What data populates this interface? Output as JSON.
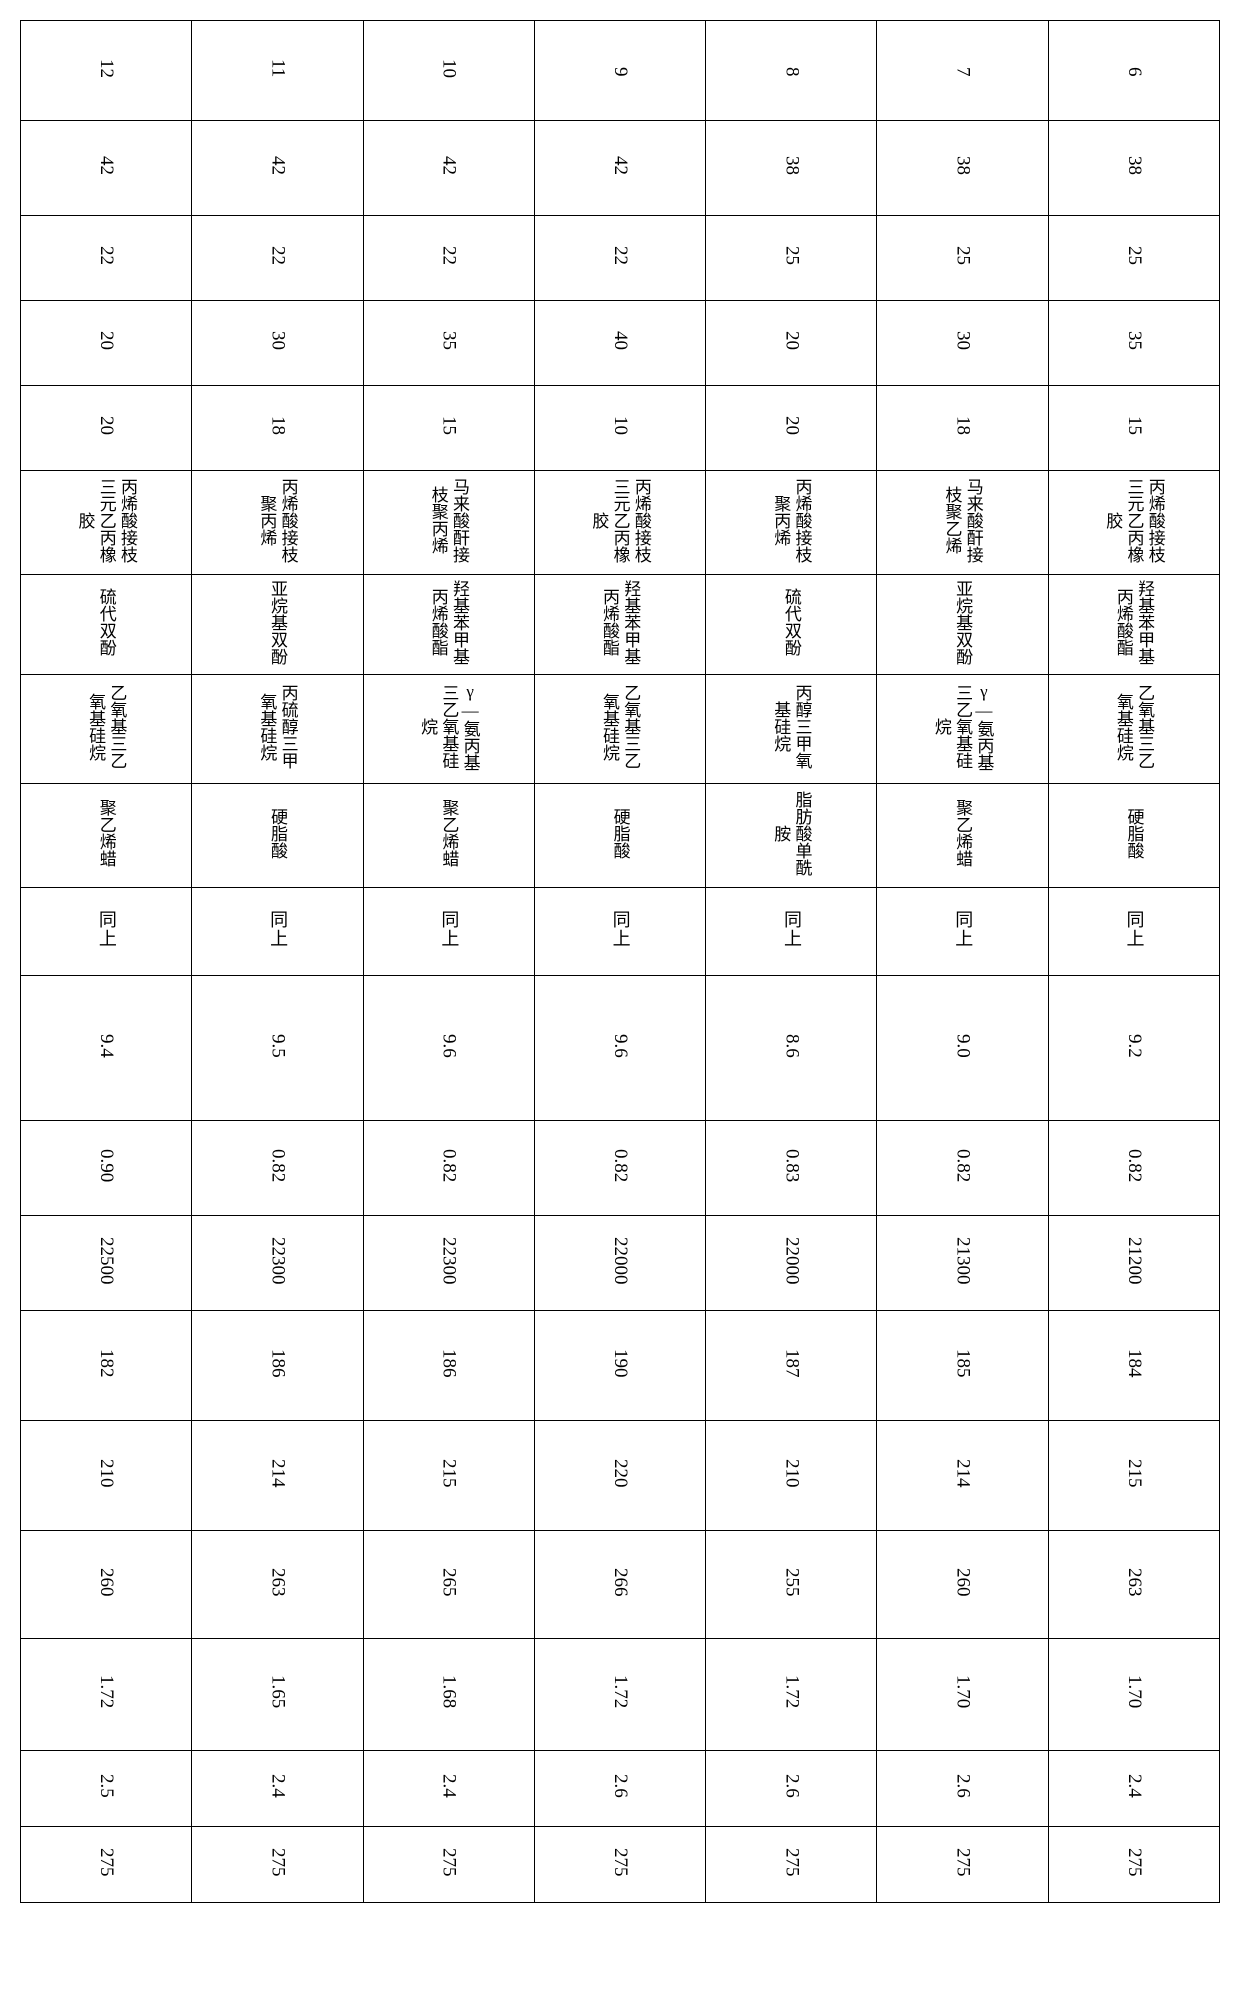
{
  "table": {
    "background_color": "#ffffff",
    "border_color": "#000000",
    "text_color": "#000000",
    "font_family": "SimSun",
    "orientation": "vertical-rl",
    "column_count": 19,
    "row_ids": [
      "6",
      "7",
      "8",
      "9",
      "10",
      "11",
      "12"
    ],
    "columns": [
      {
        "idx": 0,
        "type": "number",
        "label": "row_id"
      },
      {
        "idx": 1,
        "type": "number"
      },
      {
        "idx": 2,
        "type": "number"
      },
      {
        "idx": 3,
        "type": "number"
      },
      {
        "idx": 4,
        "type": "number"
      },
      {
        "idx": 5,
        "type": "text_multi"
      },
      {
        "idx": 6,
        "type": "text_multi"
      },
      {
        "idx": 7,
        "type": "text_multi"
      },
      {
        "idx": 8,
        "type": "text_multi"
      },
      {
        "idx": 9,
        "type": "text"
      },
      {
        "idx": 10,
        "type": "number"
      },
      {
        "idx": 11,
        "type": "number"
      },
      {
        "idx": 12,
        "type": "number"
      },
      {
        "idx": 13,
        "type": "number"
      },
      {
        "idx": 14,
        "type": "number"
      },
      {
        "idx": 15,
        "type": "number"
      },
      {
        "idx": 16,
        "type": "number"
      },
      {
        "idx": 17,
        "type": "number"
      },
      {
        "idx": 18,
        "type": "number"
      }
    ],
    "rows": [
      {
        "id": "6",
        "cells": [
          "6",
          "38",
          "25",
          "35",
          "15",
          "丙烯酸接枝三元乙丙橡胶",
          "羟基苯甲基丙烯酸酯",
          "乙氧基三乙氧基硅烷",
          "硬脂酸",
          "同上",
          "9.2",
          "0.82",
          "21200",
          "184",
          "215",
          "263",
          "1.70",
          "2.4",
          "275"
        ]
      },
      {
        "id": "7",
        "cells": [
          "7",
          "38",
          "25",
          "30",
          "18",
          "马来酸酐接枝聚乙烯",
          "亚烷基双酚",
          "γ—氨丙基三乙氧基硅烷",
          "聚乙烯蜡",
          "同上",
          "9.0",
          "0.82",
          "21300",
          "185",
          "214",
          "260",
          "1.70",
          "2.6",
          "275"
        ]
      },
      {
        "id": "8",
        "cells": [
          "8",
          "38",
          "25",
          "20",
          "20",
          "丙烯酸接枝聚丙烯",
          "硫代双酚",
          "丙醇三甲氧基硅烷",
          "脂肪酸单酰胺",
          "同上",
          "8.6",
          "0.83",
          "22000",
          "187",
          "210",
          "255",
          "1.72",
          "2.6",
          "275"
        ]
      },
      {
        "id": "9",
        "cells": [
          "9",
          "42",
          "22",
          "40",
          "10",
          "丙烯酸接枝三元乙丙橡胶",
          "羟基苯甲基丙烯酸酯",
          "乙氧基三乙氧基硅烷",
          "硬脂酸",
          "同上",
          "9.6",
          "0.82",
          "22000",
          "190",
          "220",
          "266",
          "1.72",
          "2.6",
          "275"
        ]
      },
      {
        "id": "10",
        "cells": [
          "10",
          "42",
          "22",
          "35",
          "15",
          "马来酸酐接枝聚丙烯",
          "羟基苯甲基丙烯酸酯",
          "γ—氨丙基三乙氧基硅烷",
          "聚乙烯蜡",
          "同上",
          "9.6",
          "0.82",
          "22300",
          "186",
          "215",
          "265",
          "1.68",
          "2.4",
          "275"
        ]
      },
      {
        "id": "11",
        "cells": [
          "11",
          "42",
          "22",
          "30",
          "18",
          "丙烯酸接枝聚丙烯",
          "亚烷基双酚",
          "丙硫醇三甲氧基硅烷",
          "硬脂酸",
          "同上",
          "9.5",
          "0.82",
          "22300",
          "186",
          "214",
          "263",
          "1.65",
          "2.4",
          "275"
        ]
      },
      {
        "id": "12",
        "cells": [
          "12",
          "42",
          "22",
          "20",
          "20",
          "丙烯酸接枝三元乙丙橡胶",
          "硫代双酚",
          "乙氧基三乙氧基硅烷",
          "聚乙烯蜡",
          "同上",
          "9.4",
          "0.90",
          "22500",
          "182",
          "210",
          "260",
          "1.72",
          "2.5",
          "275"
        ]
      }
    ]
  }
}
